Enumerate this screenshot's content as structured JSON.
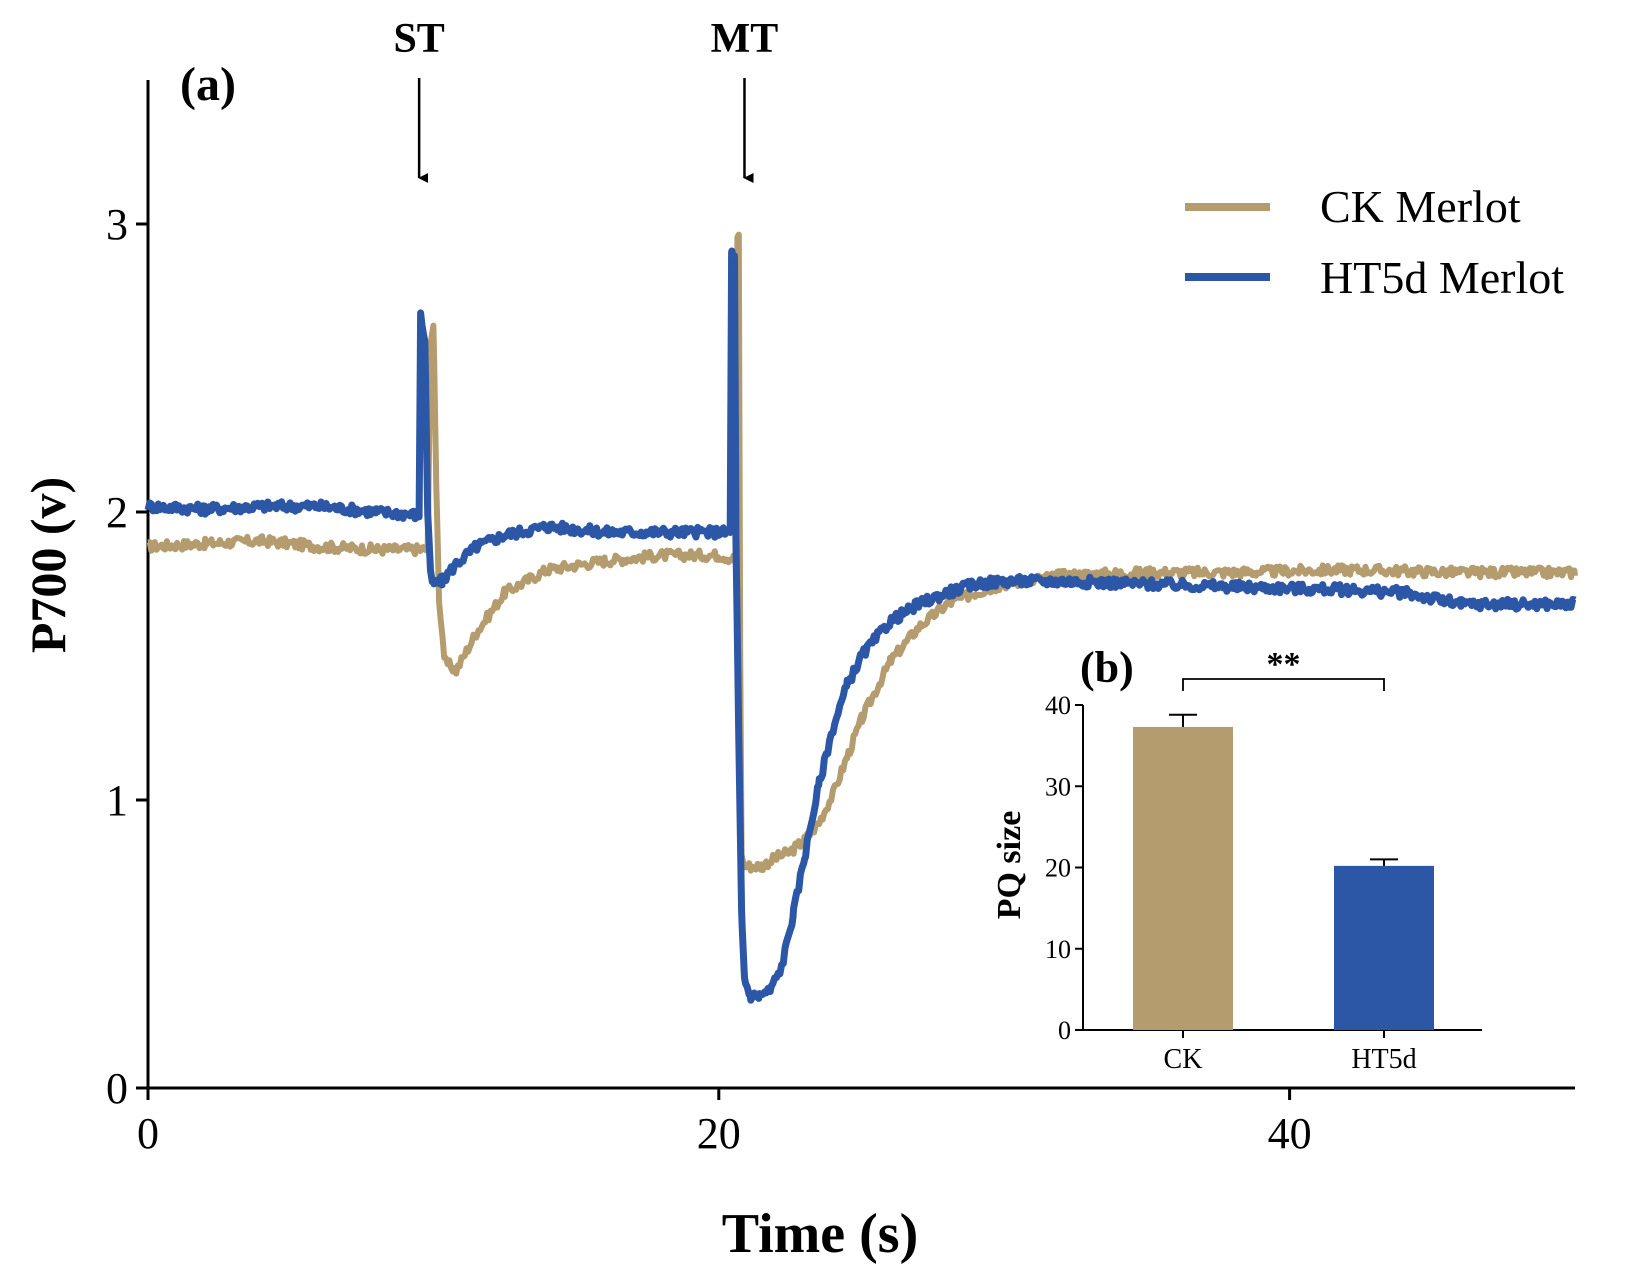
{
  "colors": {
    "ck": "#b59c6e",
    "ht5d": "#2c56a6",
    "axis": "#000000"
  },
  "chart_data": [
    {
      "panel_label": "(a)",
      "type": "line",
      "title": "",
      "xlabel": "Time (s)",
      "ylabel": "P700 (v)",
      "xlim": [
        0,
        50
      ],
      "ylim": [
        0,
        3.5
      ],
      "xticks": [
        "0",
        "20",
        "40"
      ],
      "yticks": [
        "0",
        "1",
        "2",
        "3"
      ],
      "grid": false,
      "legend_position": "top-right",
      "annotations": [
        {
          "label": "ST",
          "x": 9.5
        },
        {
          "label": "MT",
          "x": 20.9
        }
      ],
      "series": [
        {
          "name": "CK Merlot",
          "color_key": "ck",
          "x": [
            0,
            2,
            4,
            6,
            8,
            9.5,
            9.8,
            9.9,
            10.0,
            10.1,
            10.2,
            10.4,
            10.8,
            11.5,
            12.5,
            14,
            16,
            18,
            20,
            20.4,
            20.6,
            20.65,
            20.7,
            20.75,
            20.8,
            20.9,
            21.0,
            21.5,
            22.0,
            22.5,
            23.0,
            23.5,
            24,
            24.5,
            25,
            26,
            27,
            28,
            29,
            30,
            32,
            35,
            38,
            42,
            46,
            50
          ],
          "y": [
            1.88,
            1.89,
            1.9,
            1.88,
            1.87,
            1.87,
            1.87,
            2.6,
            2.65,
            2.1,
            1.7,
            1.48,
            1.45,
            1.58,
            1.72,
            1.8,
            1.83,
            1.85,
            1.85,
            1.84,
            1.84,
            2.95,
            2.97,
            1.5,
            0.8,
            0.77,
            0.77,
            0.77,
            0.8,
            0.82,
            0.86,
            0.92,
            1.02,
            1.15,
            1.28,
            1.48,
            1.6,
            1.68,
            1.72,
            1.75,
            1.78,
            1.79,
            1.79,
            1.8,
            1.79,
            1.79
          ]
        },
        {
          "name": "HT5d Merlot",
          "color_key": "ht5d",
          "x": [
            0,
            2,
            4,
            6,
            8,
            9.5,
            9.55,
            9.7,
            9.8,
            9.9,
            10.0,
            10.3,
            10.8,
            11.5,
            12.5,
            14,
            16,
            18,
            20,
            20.4,
            20.45,
            20.55,
            20.6,
            20.7,
            20.8,
            20.9,
            21.1,
            21.4,
            21.8,
            22.2,
            22.6,
            23.0,
            23.5,
            24,
            24.5,
            25,
            26,
            27,
            28,
            29,
            30,
            32,
            35,
            38,
            42,
            44,
            46,
            50
          ],
          "y": [
            2.02,
            2.01,
            2.02,
            2.02,
            2.0,
            1.99,
            2.68,
            2.6,
            2.0,
            1.78,
            1.75,
            1.76,
            1.82,
            1.88,
            1.92,
            1.95,
            1.93,
            1.93,
            1.93,
            1.93,
            2.9,
            2.88,
            1.9,
            1.2,
            0.6,
            0.38,
            0.32,
            0.32,
            0.34,
            0.42,
            0.6,
            0.8,
            1.05,
            1.25,
            1.4,
            1.5,
            1.62,
            1.68,
            1.72,
            1.75,
            1.76,
            1.76,
            1.75,
            1.74,
            1.73,
            1.72,
            1.68,
            1.68
          ]
        }
      ]
    },
    {
      "panel_label": "(b)",
      "type": "bar",
      "title": "",
      "xlabel": "",
      "ylabel": "PQ size",
      "ylim": [
        0,
        40
      ],
      "yticks": [
        "0",
        "10",
        "20",
        "30",
        "40"
      ],
      "categories": [
        "CK",
        "HT5d"
      ],
      "values": [
        37.3,
        20.2
      ],
      "errors": [
        1.5,
        0.8
      ],
      "color_keys": [
        "ck",
        "ht5d"
      ],
      "significance": "**"
    }
  ]
}
